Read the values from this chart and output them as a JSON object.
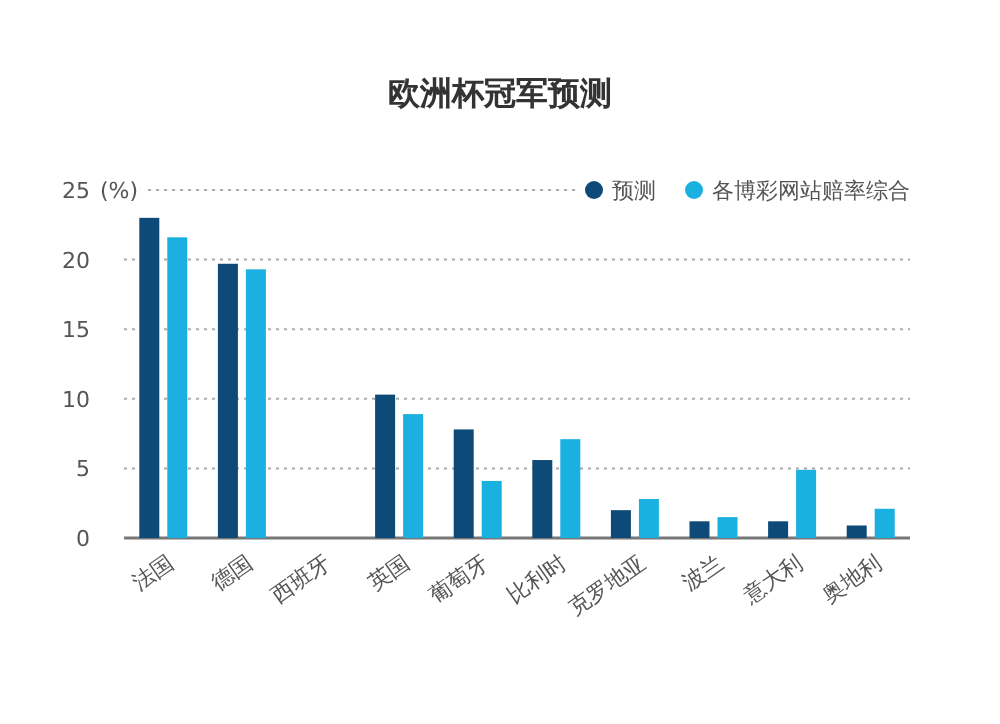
{
  "chart_data": {
    "type": "bar",
    "title": "欧洲杯冠军预测",
    "ylabel": "(%)",
    "categories": [
      "法国",
      "德国",
      "西班牙",
      "英国",
      "葡萄牙",
      "比利时",
      "克罗地亚",
      "波兰",
      "意大利",
      "奥地利"
    ],
    "series": [
      {
        "name": "预测",
        "color": "#0d4a78",
        "values": [
          23.0,
          19.7,
          null,
          10.3,
          7.8,
          5.6,
          2.0,
          1.2,
          1.2,
          0.9
        ]
      },
      {
        "name": "各博彩网站赔率综合",
        "color": "#1ab0e0",
        "values": [
          21.6,
          19.3,
          null,
          8.9,
          4.1,
          7.1,
          2.8,
          1.5,
          4.9,
          2.1
        ]
      }
    ],
    "ylim": [
      0,
      25
    ],
    "yticks": [
      0,
      5,
      10,
      15,
      20,
      25
    ],
    "grid": "y",
    "legend": "top right"
  }
}
